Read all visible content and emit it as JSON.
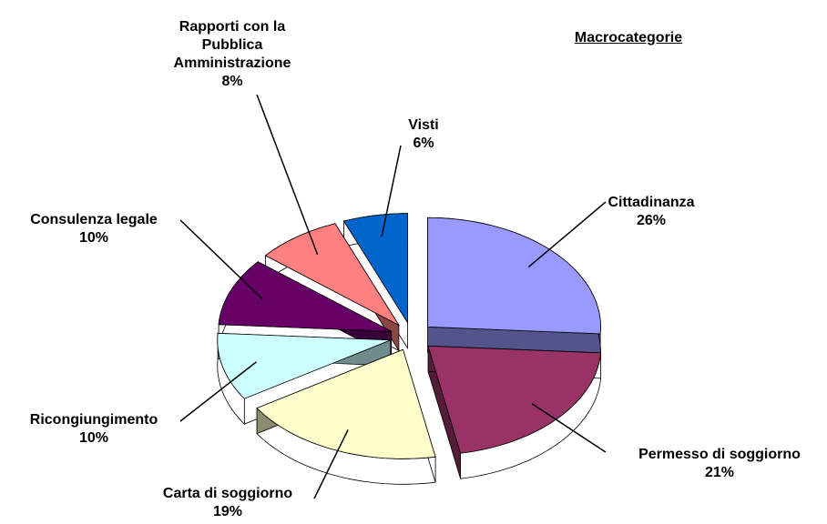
{
  "chart_data": {
    "type": "pie",
    "title": "Macrocategorie",
    "categories": [
      "Cittadinanza",
      "Permesso di soggiorno",
      "Carta di soggiorno",
      "Ricongiungimento",
      "Consulenza legale",
      "Rapporti con la Pubblica Amministrazione",
      "Visti"
    ],
    "values": [
      26,
      21,
      19,
      10,
      10,
      8,
      6
    ],
    "value_labels": [
      "26%",
      "21%",
      "19%",
      "10%",
      "10%",
      "8%",
      "6%"
    ],
    "colors": [
      "#9999ff",
      "#993366",
      "#ffffcc",
      "#ccffff",
      "#660066",
      "#ff8080",
      "#0066cc"
    ]
  }
}
